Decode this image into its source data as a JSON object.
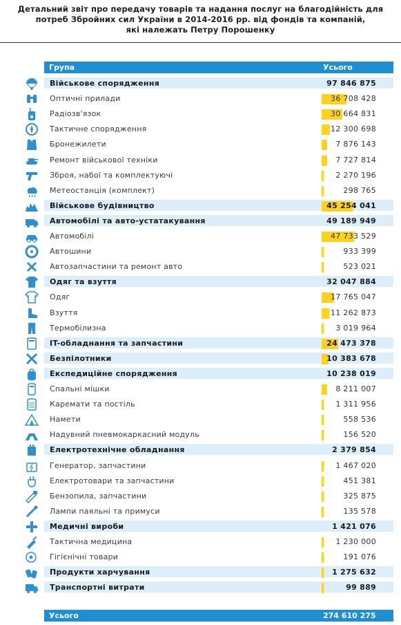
{
  "title": {
    "line1": "Детальний звіт про передачу товарів та надання послуг на благодійність для",
    "line2": "потреб Збройних сил України в 2014-2016 рр. від фондів та компаній,",
    "line3": "які належать Петру Порошенку"
  },
  "header": {
    "group": "Група",
    "total": "Усього"
  },
  "footer": {
    "label": "Усього",
    "total": "274 610 275"
  },
  "colors": {
    "accent": "#1e8fd3",
    "band": "#dbeefa",
    "bar": "#ffd21f",
    "icon": "#2f8fd0"
  },
  "rows": [
    {
      "kind": "cat",
      "icon": "parachute-icon",
      "label": "Військове спорядження",
      "value": "97 846 875",
      "bar": 0
    },
    {
      "kind": "item",
      "icon": "binoculars-icon",
      "label": "Оптичні прилади",
      "value": "36 708 428",
      "bar": 0.3752
    },
    {
      "kind": "item",
      "icon": "radio-icon",
      "label": "Радіозв'язок",
      "value": "30 664 831",
      "bar": 0.3134
    },
    {
      "kind": "item",
      "icon": "compass-icon",
      "label": "Тактичне спорядження",
      "value": "12 300 698",
      "bar": 0.1257
    },
    {
      "kind": "item",
      "icon": "vest-icon",
      "label": "Бронежилети",
      "value": "7 876 143",
      "bar": 0.0805
    },
    {
      "kind": "item",
      "icon": "tank-icon",
      "label": "Ремонт військової техніки",
      "value": "7 727 814",
      "bar": 0.079
    },
    {
      "kind": "item",
      "icon": "pistol-icon",
      "label": "Зброя, набої та комплектуючі",
      "value": "2 270 196",
      "bar": 0.0232
    },
    {
      "kind": "item",
      "icon": "weather-icon",
      "label": "Метеостанція (комплект)",
      "value": "298 765",
      "bar": 0.0031
    },
    {
      "kind": "cat",
      "icon": "building-icon",
      "label": "Військове будівництво",
      "value": "45 254 041",
      "bar": 0.4625
    },
    {
      "kind": "cat",
      "icon": "ambulance-icon",
      "label": "Автомобілі та авто-устатакування",
      "value": "49 189 949",
      "bar": 0
    },
    {
      "kind": "item",
      "icon": "car-icon",
      "label": "Автомобілі",
      "value": "47 733 529",
      "bar": 0.4878
    },
    {
      "kind": "item",
      "icon": "tire-icon",
      "label": "Автошини",
      "value": "933 399",
      "bar": 0.0095
    },
    {
      "kind": "item",
      "icon": "wrench-icon",
      "label": "Автозапчастини та ремонт авто",
      "value": "523 021",
      "bar": 0.0053
    },
    {
      "kind": "cat",
      "icon": "uniform-icon",
      "label": "Одяг та взуття",
      "value": "32 047 884",
      "bar": 0
    },
    {
      "kind": "item",
      "icon": "shirt-icon",
      "label": "Одяг",
      "value": "17 765 047",
      "bar": 0.1816
    },
    {
      "kind": "item",
      "icon": "boot-icon",
      "label": "Взуття",
      "value": "11 262 873",
      "bar": 0.1151
    },
    {
      "kind": "item",
      "icon": "thermal-underwear-icon",
      "label": "Термобілизна",
      "value": "3 019 964",
      "bar": 0.0309
    },
    {
      "kind": "cat",
      "icon": "computer-icon",
      "label": "IT-обладнання та запчастини",
      "value": "24 473 378",
      "bar": 0.2501
    },
    {
      "kind": "cat",
      "icon": "drone-icon",
      "label": "Безпілотники",
      "value": "10 383 678",
      "bar": 0.1061
    },
    {
      "kind": "cat",
      "icon": "backpack-icon",
      "label": "Експедиційне спорядження",
      "value": "10 238 019",
      "bar": 0
    },
    {
      "kind": "item",
      "icon": "sleeping-bag-icon",
      "label": "Спальні мішки",
      "value": "8 211 007",
      "bar": 0.0839
    },
    {
      "kind": "item",
      "icon": "mat-icon",
      "label": "Каремати та постіль",
      "value": "1 311 956",
      "bar": 0.0134
    },
    {
      "kind": "item",
      "icon": "tent-icon",
      "label": "Намети",
      "value": "558 536",
      "bar": 0.0057
    },
    {
      "kind": "item",
      "icon": "inflatable-module-icon",
      "label": "Надувний пневмокаркасний модуль",
      "value": "156 520",
      "bar": 0.0016
    },
    {
      "kind": "cat",
      "icon": "battery-icon",
      "label": "Електротехнічне обладнання",
      "value": "2 379 854",
      "bar": 0
    },
    {
      "kind": "item",
      "icon": "generator-icon",
      "label": "Генератор, запчастини",
      "value": "1 467 020",
      "bar": 0.015
    },
    {
      "kind": "item",
      "icon": "plug-icon",
      "label": "Електротовари та запчастини",
      "value": "451 381",
      "bar": 0.0046
    },
    {
      "kind": "item",
      "icon": "chainsaw-icon",
      "label": "Бензопила, запчастини",
      "value": "325 875",
      "bar": 0.0033
    },
    {
      "kind": "item",
      "icon": "lamp-icon",
      "label": "Лампи паяльні та примуси",
      "value": "135 578",
      "bar": 0.0014
    },
    {
      "kind": "cat",
      "icon": "medical-cross-icon",
      "label": "Медичні вироби",
      "value": "1 421 076",
      "bar": 0
    },
    {
      "kind": "item",
      "icon": "tactical-medicine-icon",
      "label": "Тактична медицина",
      "value": "1 230 000",
      "bar": 0.0126
    },
    {
      "kind": "item",
      "icon": "toilet-paper-icon",
      "label": "Гігієнічні товари",
      "value": "191 076",
      "bar": 0.002
    },
    {
      "kind": "cat",
      "icon": "food-icon",
      "label": "Продукти харчування",
      "value": "1 275 632",
      "bar": 0.013
    },
    {
      "kind": "cat",
      "icon": "truck-icon",
      "label": "Транспортні витрати",
      "value": "99 889",
      "bar": 0.001
    }
  ]
}
